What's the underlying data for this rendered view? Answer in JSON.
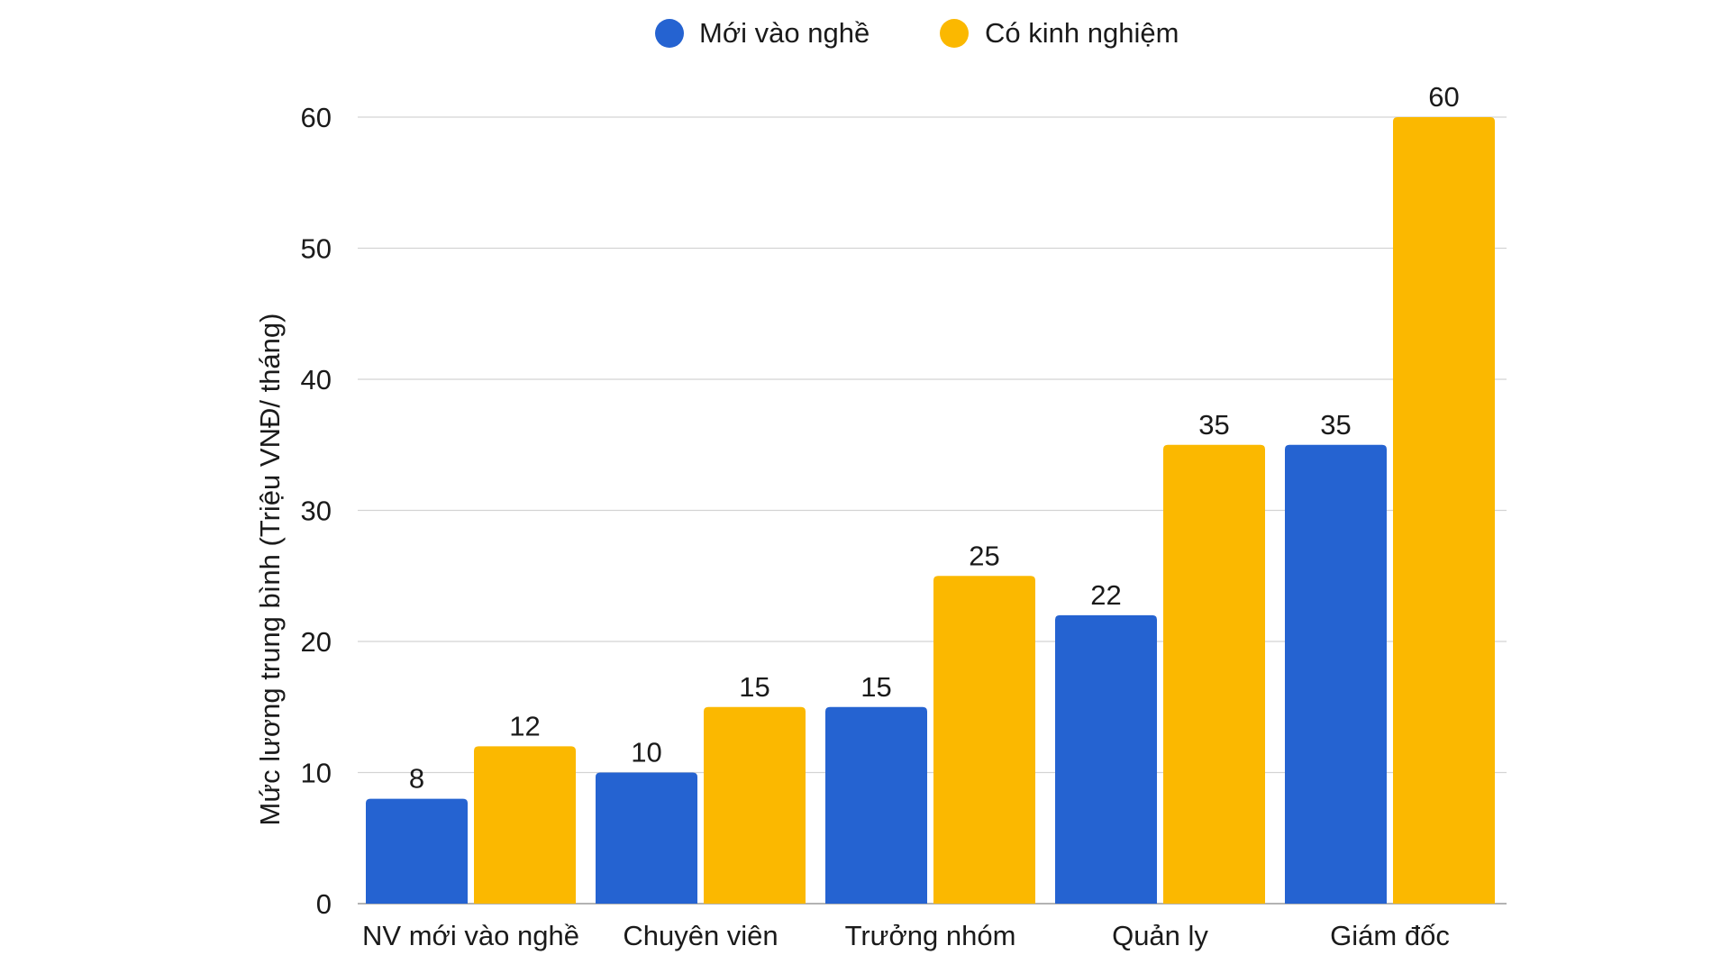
{
  "chart_data": {
    "type": "bar",
    "title": "",
    "xlabel": "",
    "ylabel": "Mức lương trung bình (Triệu VNĐ/ tháng)",
    "ylim": [
      0,
      60
    ],
    "yticks": [
      0,
      10,
      20,
      30,
      40,
      50,
      60
    ],
    "grid": true,
    "legend_position": "top",
    "categories": [
      "NV mới vào nghề",
      "Chuyên viên",
      "Trưởng nhóm",
      "Quản ly",
      "Giám đốc"
    ],
    "series": [
      {
        "name": "Mới vào nghề",
        "color": "#2563d1",
        "values": [
          8,
          10,
          15,
          22,
          35
        ]
      },
      {
        "name": "Có kinh nghiệm",
        "color": "#fbb800",
        "values": [
          12,
          15,
          25,
          35,
          60
        ]
      }
    ],
    "data_labels": true
  }
}
